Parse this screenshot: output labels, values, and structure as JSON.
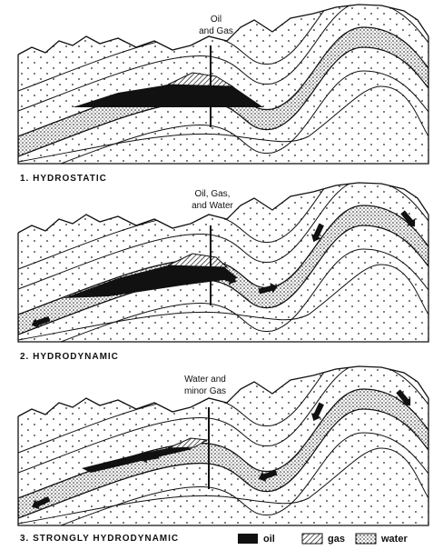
{
  "panels": [
    {
      "well_label": [
        "Oil",
        "and Gas"
      ],
      "caption": "1. HYDROSTATIC"
    },
    {
      "well_label": [
        "Oil, Gas,",
        "and Water"
      ],
      "caption": "2. HYDRODYNAMIC"
    },
    {
      "well_label": [
        "Water and",
        "minor Gas"
      ],
      "caption": "3. STRONGLY HYDRODYNAMIC"
    }
  ],
  "legend": [
    "oil",
    "gas",
    "water"
  ]
}
